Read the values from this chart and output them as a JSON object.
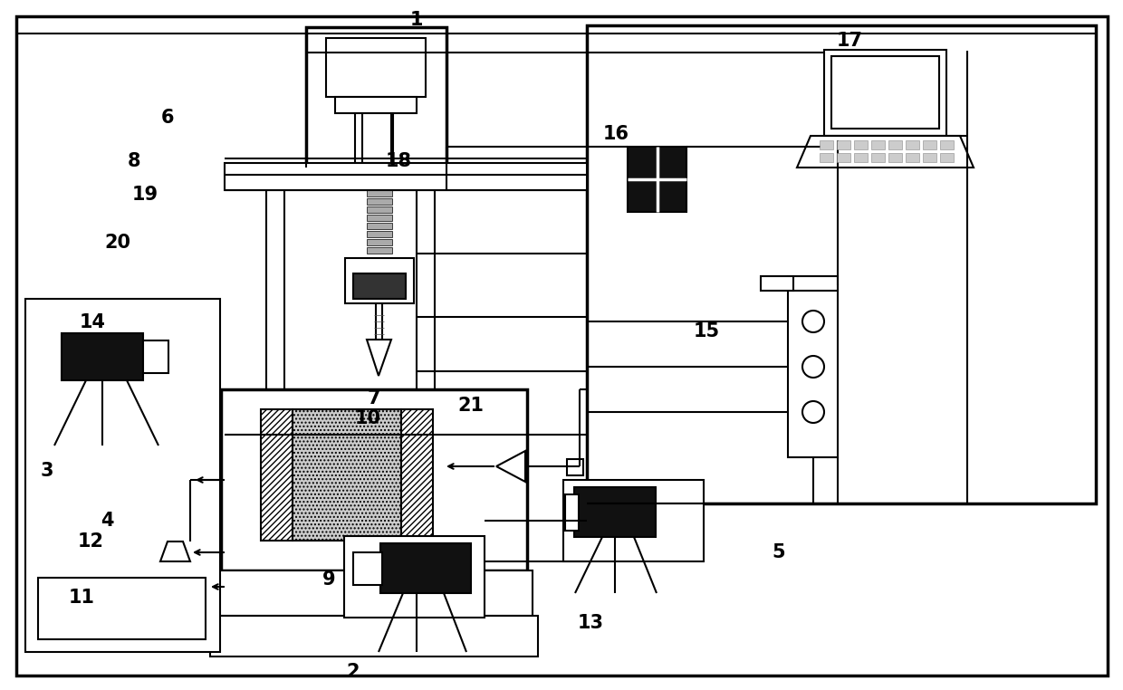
{
  "bg_color": "#ffffff",
  "lc": "#000000",
  "lw": 1.5,
  "tlw": 2.5,
  "fig_w": 12.4,
  "fig_h": 7.62,
  "dpi": 100
}
